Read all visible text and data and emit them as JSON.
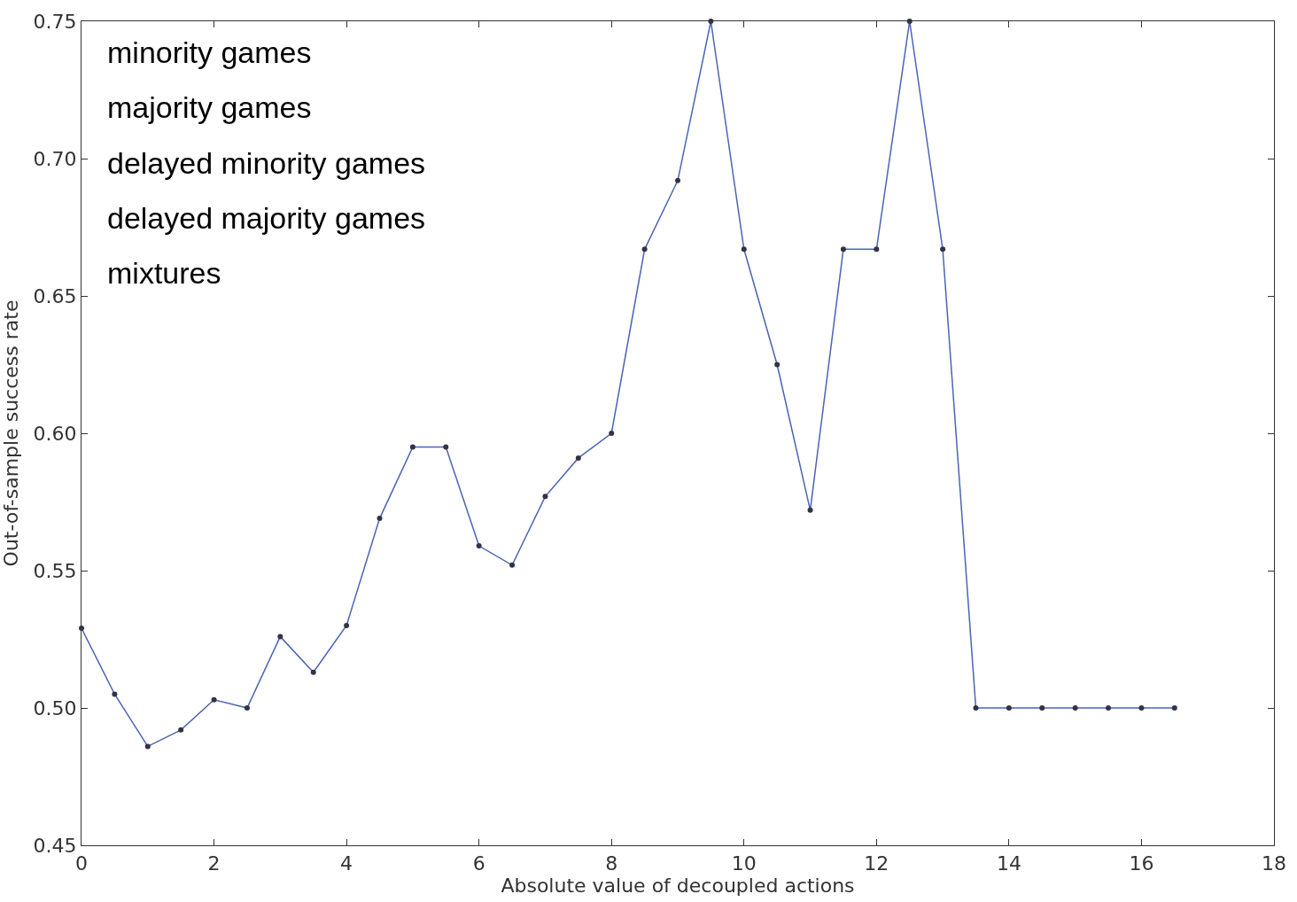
{
  "chart_data": {
    "type": "line",
    "xlabel": "Absolute value of decoupled actions",
    "ylabel": "Out-of-sample success rate",
    "annotations": [
      "minority games",
      "majority games",
      "delayed minority games",
      "delayed majority games",
      "mixtures"
    ],
    "x": [
      0,
      0.5,
      1,
      1.5,
      2,
      2.5,
      3,
      3.5,
      4,
      4.5,
      5,
      5.5,
      6,
      6.5,
      7,
      7.5,
      8,
      8.5,
      9,
      9.5,
      10,
      10.5,
      11,
      11.5,
      12,
      12.5,
      13,
      13.5,
      14,
      14.5,
      15,
      15.5,
      16,
      16.5
    ],
    "series": [
      {
        "color": "#4a64b4",
        "values": [
          0.529,
          0.505,
          0.486,
          0.492,
          0.503,
          0.5,
          0.526,
          0.513,
          0.53,
          0.569,
          0.595,
          0.595,
          0.559,
          0.552,
          0.577,
          0.591,
          0.6,
          0.667,
          0.692,
          0.75,
          0.667,
          0.625,
          0.572,
          0.667,
          0.667,
          0.75,
          0.667,
          0.5,
          0.5,
          0.5,
          0.5,
          0.5,
          0.5,
          0.5
        ]
      }
    ],
    "xlim": [
      0,
      18
    ],
    "xticks": [
      0,
      2,
      4,
      6,
      8,
      10,
      12,
      14,
      16,
      18
    ],
    "ylim": [
      0.45,
      0.75
    ],
    "yticks": [
      {
        "value": 0.45,
        "label": "0.45"
      },
      {
        "value": 0.5,
        "label": "0.50"
      },
      {
        "value": 0.55,
        "label": "0.55"
      },
      {
        "value": 0.6,
        "label": "0.60"
      },
      {
        "value": 0.65,
        "label": "0.65"
      },
      {
        "value": 0.7,
        "label": "0.70"
      },
      {
        "value": 0.75,
        "label": "0.75"
      }
    ],
    "marker": "circle",
    "line_style": "solid"
  }
}
